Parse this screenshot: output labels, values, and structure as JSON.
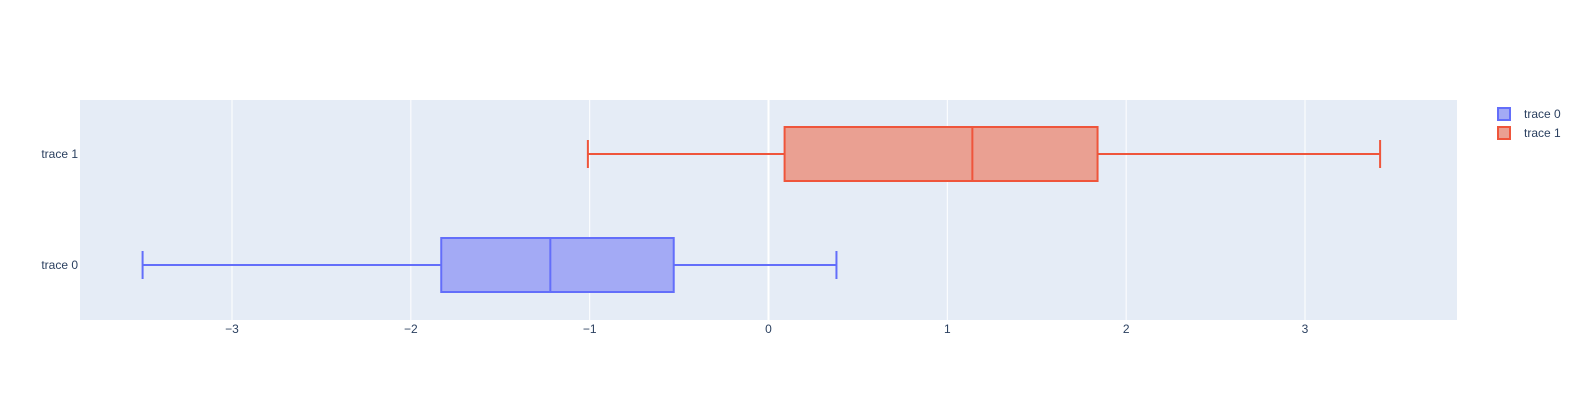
{
  "chart_data": {
    "type": "box",
    "orientation": "horizontal",
    "xlim": [
      -3.85,
      3.85
    ],
    "xticks": [
      -3,
      -2,
      -1,
      0,
      1,
      2,
      3
    ],
    "xtick_labels": [
      "−3",
      "−2",
      "−1",
      "0",
      "1",
      "2",
      "3"
    ],
    "categories": [
      "trace 0",
      "trace 1"
    ],
    "grid": true,
    "legend_position": "top-right",
    "series": [
      {
        "name": "trace 0",
        "min": -3.5,
        "q1": -1.83,
        "median": -1.22,
        "q3": -0.53,
        "max": 0.38,
        "color": "#636efa",
        "fill": "#a3aaf5"
      },
      {
        "name": "trace 1",
        "min": -1.01,
        "q1": 0.09,
        "median": 1.14,
        "q3": 1.84,
        "max": 3.42,
        "color": "#ef553b",
        "fill": "#eaa092"
      }
    ]
  }
}
